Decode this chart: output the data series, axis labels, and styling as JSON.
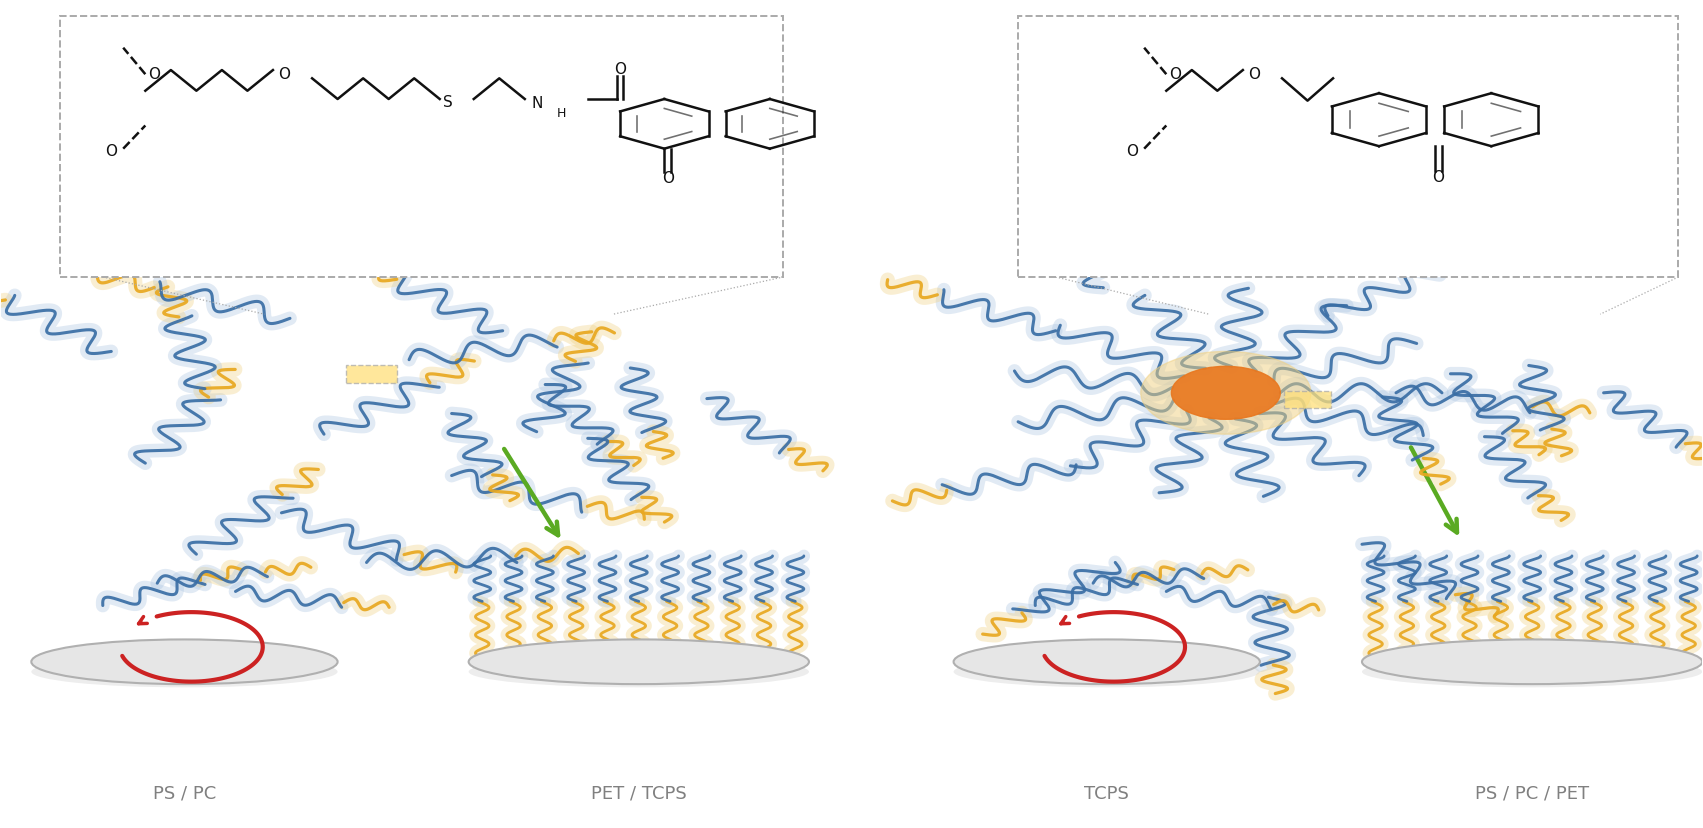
{
  "bg_color": "#ffffff",
  "fig_width": 17.03,
  "fig_height": 8.29,
  "dpi": 100,
  "labels": {
    "ps_pc": "PS / PC",
    "pet_tcps": "PET / TCPS",
    "tcps": "TCPS",
    "ps_pc_pet": "PS / PC / PET"
  },
  "label_color": "#808080",
  "label_fontsize": 13,
  "blue_chain": "#3a6ea5",
  "blue_glow": "#aac4e0",
  "yellow_chain": "#e8a820",
  "yellow_glow": "#f0d080",
  "orange_core": "#e87820",
  "red_arrow": "#cc2222",
  "green_arrow": "#5aaa22",
  "dash_gray": "#aaaaaa"
}
